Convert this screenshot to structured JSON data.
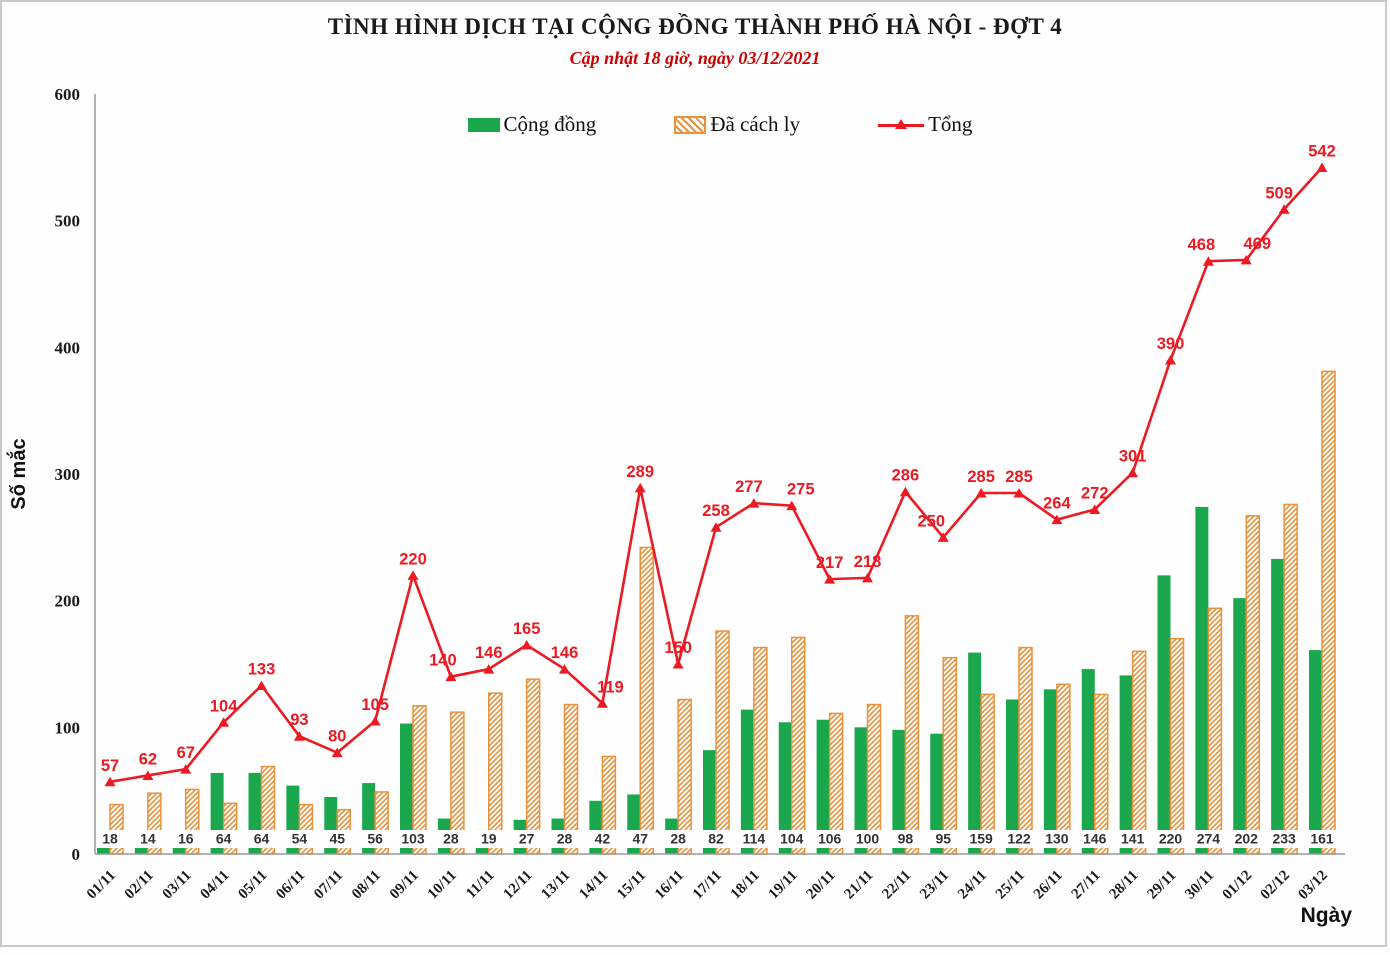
{
  "header": {
    "title": "TÌNH HÌNH DỊCH TẠI CỘNG ĐỒNG THÀNH PHỐ HÀ NỘI - ĐỢT 4",
    "subtitle": "Cập nhật 18 giờ, ngày 03/12/2021"
  },
  "legend": [
    {
      "label": "Cộng đồng",
      "swatch": "green-bar",
      "color": "#1BA74E"
    },
    {
      "label": "Đã cách ly",
      "swatch": "hatched-bar",
      "color": "#E8923C"
    },
    {
      "label": "Tổng",
      "swatch": "red-line-triangle",
      "color": "#EC1B23"
    }
  ],
  "colors": {
    "community_bar": "#1BA74E",
    "quarantine_hatch": "#E8923C",
    "total_line": "#EC1B23",
    "axis": "#9a9a9a",
    "value_label": "#333333",
    "frame": "#c9c9c9"
  },
  "chart_data": {
    "type": "bar",
    "title": "TÌNH HÌNH DỊCH TẠI CỘNG ĐỒNG THÀNH PHỐ HÀ NỘI - ĐỢT 4",
    "subtitle": "Cập nhật 18 giờ, ngày 03/12/2021",
    "xlabel": "Ngày",
    "ylabel": "Số mắc",
    "ylim": [
      0,
      600
    ],
    "y_ticks": [
      0,
      100,
      200,
      300,
      400,
      500,
      600
    ],
    "grid": false,
    "legend_position": "top-center",
    "categories": [
      "01/11",
      "02/11",
      "03/11",
      "04/11",
      "05/11",
      "06/11",
      "07/11",
      "08/11",
      "09/11",
      "10/11",
      "11/11",
      "12/11",
      "13/11",
      "14/11",
      "15/11",
      "16/11",
      "17/11",
      "18/11",
      "19/11",
      "20/11",
      "21/11",
      "22/11",
      "23/11",
      "24/11",
      "25/11",
      "26/11",
      "27/11",
      "28/11",
      "29/11",
      "30/11",
      "01/12",
      "02/12",
      "03/12"
    ],
    "series": [
      {
        "name": "Cộng đồng",
        "type": "bar",
        "color": "#1BA74E",
        "values": [
          18,
          14,
          16,
          64,
          64,
          54,
          45,
          56,
          103,
          28,
          19,
          27,
          28,
          42,
          47,
          28,
          82,
          114,
          104,
          106,
          100,
          98,
          95,
          159,
          122,
          130,
          146,
          141,
          220,
          274,
          202,
          233,
          161
        ],
        "labels_shown": true
      },
      {
        "name": "Đã cách ly",
        "type": "bar-hatched",
        "color": "#E8923C",
        "values": [
          39,
          48,
          51,
          40,
          69,
          39,
          35,
          49,
          117,
          112,
          127,
          138,
          118,
          77,
          242,
          122,
          176,
          163,
          171,
          111,
          118,
          188,
          155,
          126,
          163,
          134,
          126,
          160,
          170,
          194,
          267,
          276,
          381
        ],
        "labels_shown": false
      },
      {
        "name": "Tổng",
        "type": "line",
        "color": "#EC1B23",
        "marker": "triangle-up",
        "values": [
          57,
          62,
          67,
          104,
          133,
          93,
          80,
          105,
          220,
          140,
          146,
          165,
          146,
          119,
          289,
          150,
          258,
          277,
          275,
          217,
          218,
          286,
          250,
          285,
          285,
          264,
          272,
          301,
          390,
          468,
          469,
          509,
          542
        ],
        "labels_shown": true
      }
    ]
  }
}
